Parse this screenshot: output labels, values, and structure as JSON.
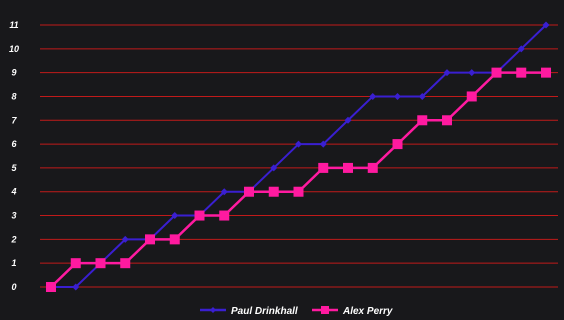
{
  "chart_data": {
    "type": "line",
    "title": "",
    "xlabel": "",
    "ylabel": "",
    "x": [
      1,
      2,
      3,
      4,
      5,
      6,
      7,
      8,
      9,
      10,
      11,
      12,
      13,
      14,
      15,
      16,
      17,
      18,
      19,
      20,
      21
    ],
    "ylim": [
      0,
      11
    ],
    "yticks": [
      "0",
      "1",
      "2",
      "3",
      "4",
      "5",
      "6",
      "7",
      "8",
      "9",
      "10",
      "11"
    ],
    "grid": true,
    "legend_position": "bottom",
    "series": [
      {
        "name": "Paul Drinkhall",
        "color": "#3a1fd1",
        "marker": "diamond",
        "values": [
          0,
          0,
          1,
          2,
          2,
          3,
          3,
          4,
          4,
          5,
          6,
          6,
          7,
          8,
          8,
          8,
          9,
          9,
          9,
          10,
          11
        ]
      },
      {
        "name": "Alex Perry",
        "color": "#ff1aa0",
        "marker": "square",
        "values": [
          0,
          1,
          1,
          1,
          2,
          2,
          3,
          3,
          4,
          4,
          4,
          5,
          5,
          5,
          6,
          7,
          7,
          8,
          9,
          9,
          9
        ]
      }
    ],
    "colors": {
      "background": "#18181b",
      "grid": "#c01a1a",
      "text": "#ffffff"
    }
  }
}
